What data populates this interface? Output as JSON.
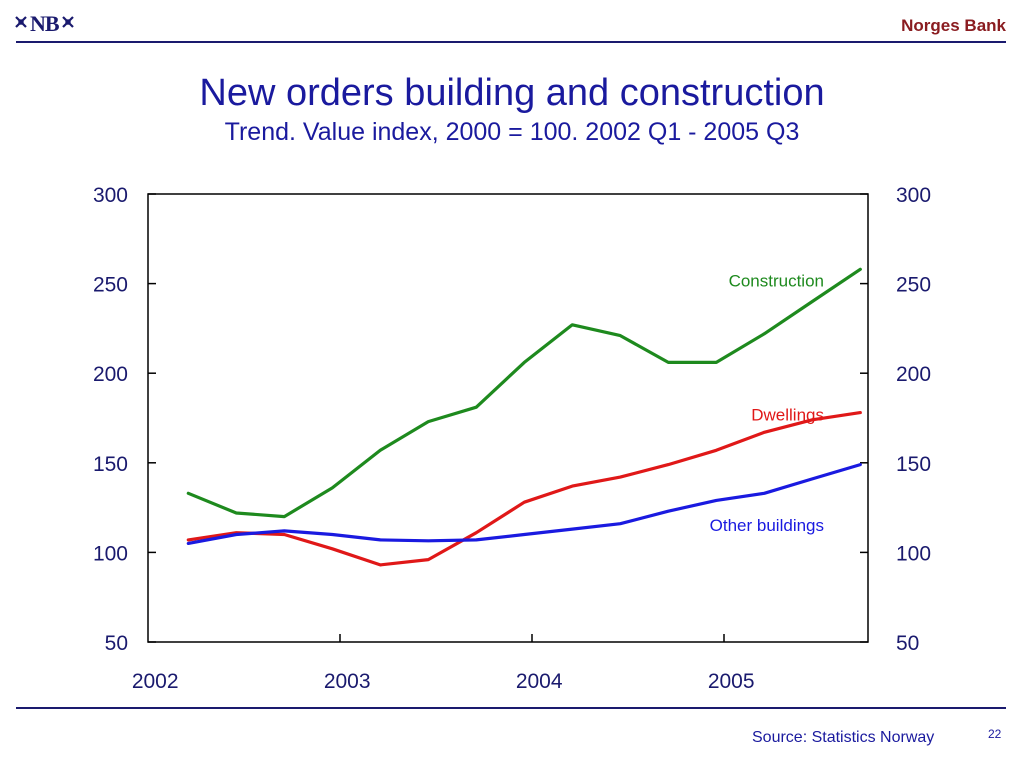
{
  "header": {
    "logo_text": "NB",
    "bank_name": "Norges Bank"
  },
  "footer": {
    "source": "Source: Statistics Norway",
    "page_number": "22"
  },
  "colors": {
    "construction": "#1e8a1e",
    "dwellings": "#e01818",
    "other_buildings": "#1a1ae0",
    "axis": "#000000",
    "text": "#1a1a9e",
    "brand": "#8a1c20"
  },
  "chart_data": {
    "type": "line",
    "title": "New orders building and construction",
    "subtitle": "Trend. Value index, 2000 = 100. 2002 Q1 - 2005 Q3",
    "xlim": [
      2002,
      2005.75
    ],
    "x_ticks": [
      2002,
      2003,
      2004,
      2005
    ],
    "x_tick_labels": [
      "2002",
      "2003",
      "2004",
      "2005"
    ],
    "ylim": [
      50,
      300
    ],
    "y_ticks": [
      50,
      100,
      150,
      200,
      250,
      300
    ],
    "y_tick_labels": [
      "50",
      "100",
      "150",
      "200",
      "250",
      "300"
    ],
    "secondary_y_axis": true,
    "grid": false,
    "x": [
      2002.21,
      2002.46,
      2002.71,
      2002.96,
      2003.21,
      2003.46,
      2003.71,
      2003.96,
      2004.21,
      2004.46,
      2004.71,
      2004.96,
      2005.21,
      2005.46,
      2005.71
    ],
    "series": [
      {
        "name": "Construction",
        "color": "#1e8a1e",
        "values": [
          133,
          122,
          120,
          136,
          157,
          173,
          181,
          206,
          227,
          221,
          206,
          206,
          222,
          240,
          258
        ]
      },
      {
        "name": "Dwellings",
        "color": "#e01818",
        "values": [
          107,
          111,
          110,
          102,
          93,
          96,
          111,
          128,
          137,
          142,
          149,
          157,
          167,
          174,
          178
        ]
      },
      {
        "name": "Other buildings",
        "color": "#1a1ae0",
        "values": [
          105,
          110,
          112,
          110,
          107,
          106.5,
          107,
          110,
          113,
          116,
          123,
          129,
          133,
          141,
          149
        ]
      }
    ]
  }
}
